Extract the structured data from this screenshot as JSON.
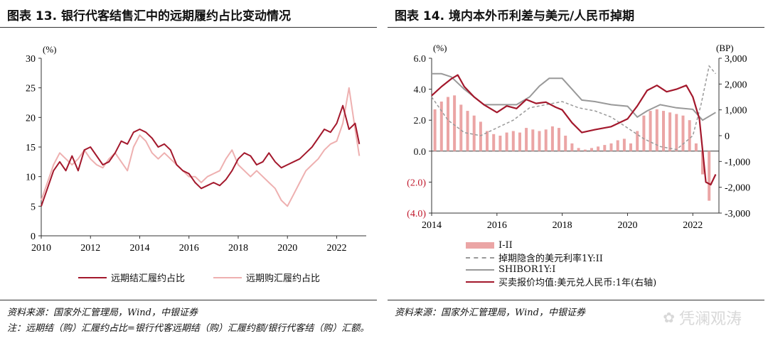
{
  "fig13": {
    "title": "图表 13. 银行代客结售汇中的远期履约占比变动情况",
    "source": "资料来源：国家外汇管理局，Wind，中银证券",
    "note": "注：远期结（购）汇履约占比=银行代客远期结（购）汇履约额/银行代客结（购）汇额。",
    "chart_data": {
      "type": "line",
      "ylabel": "(%)",
      "ylim": [
        0,
        30
      ],
      "yticks": [
        "0",
        "5",
        "10",
        "15",
        "20",
        "25",
        "30"
      ],
      "xlim": [
        2010,
        2023.2
      ],
      "xticks": [
        "2010",
        "2012",
        "2014",
        "2016",
        "2018",
        "2020",
        "2022"
      ],
      "legend_placement": "bottom",
      "series": [
        {
          "name": "远期结汇履约占比",
          "color": "#a3182c",
          "x": [
            2010.0,
            2010.25,
            2010.5,
            2010.75,
            2011.0,
            2011.25,
            2011.5,
            2011.75,
            2012.0,
            2012.25,
            2012.5,
            2012.75,
            2013.0,
            2013.25,
            2013.5,
            2013.75,
            2014.0,
            2014.25,
            2014.5,
            2014.75,
            2015.0,
            2015.25,
            2015.5,
            2015.75,
            2016.0,
            2016.25,
            2016.5,
            2016.75,
            2017.0,
            2017.25,
            2017.5,
            2017.75,
            2018.0,
            2018.25,
            2018.5,
            2018.75,
            2019.0,
            2019.25,
            2019.5,
            2019.75,
            2020.0,
            2020.25,
            2020.5,
            2020.75,
            2021.0,
            2021.25,
            2021.5,
            2021.75,
            2022.0,
            2022.25,
            2022.5,
            2022.75,
            2022.92
          ],
          "values": [
            5,
            8,
            11,
            12.5,
            11,
            13.5,
            11,
            14.5,
            15,
            13.5,
            12,
            12.5,
            14,
            16,
            15.5,
            17.5,
            18,
            17.5,
            16.5,
            15,
            15.5,
            14.5,
            12,
            11,
            10.5,
            9,
            8,
            8.5,
            9,
            8.5,
            9.5,
            11,
            13,
            14,
            13.5,
            12,
            12.5,
            14,
            12.5,
            11.5,
            12,
            12.5,
            13,
            14,
            15,
            16.5,
            18,
            17.5,
            19,
            22,
            18,
            19,
            15.5
          ]
        },
        {
          "name": "远期购汇履约占比",
          "color": "#eeb0b0",
          "x": [
            2010.0,
            2010.25,
            2010.5,
            2010.75,
            2011.0,
            2011.25,
            2011.5,
            2011.75,
            2012.0,
            2012.25,
            2012.5,
            2012.75,
            2013.0,
            2013.25,
            2013.5,
            2013.75,
            2014.0,
            2014.25,
            2014.5,
            2014.75,
            2015.0,
            2015.25,
            2015.5,
            2015.75,
            2016.0,
            2016.25,
            2016.5,
            2016.75,
            2017.0,
            2017.25,
            2017.5,
            2017.75,
            2018.0,
            2018.25,
            2018.5,
            2018.75,
            2019.0,
            2019.25,
            2019.5,
            2019.75,
            2020.0,
            2020.25,
            2020.5,
            2020.75,
            2021.0,
            2021.25,
            2021.5,
            2021.75,
            2022.0,
            2022.25,
            2022.5,
            2022.75,
            2022.92
          ],
          "values": [
            6,
            9,
            12,
            14,
            13,
            12,
            13,
            14.5,
            13,
            12,
            11.5,
            13,
            14,
            12.5,
            11,
            15,
            17,
            16,
            14,
            13,
            14,
            13,
            12,
            11,
            10,
            10,
            9,
            10,
            10.5,
            11,
            13,
            14.5,
            12,
            11,
            10,
            11,
            10,
            9,
            8,
            6,
            5,
            7,
            9,
            11,
            12,
            13,
            14.5,
            15.5,
            16,
            19,
            25,
            18,
            13.5
          ]
        }
      ]
    }
  },
  "fig14": {
    "title": "图表 14. 境内本外币利差与美元/人民币掉期",
    "source": "资料来源：国家外汇管理局，Wind，中银证券",
    "watermark": "凭澜观涛",
    "chart_data": {
      "type": "line",
      "ylabel": "(%)",
      "ylabel_right": "(BP)",
      "ylim": [
        -4,
        6
      ],
      "ylim_right": [
        -3000,
        3000
      ],
      "yticks": [
        "6.0",
        "4.0",
        "2.0",
        "0.0",
        "(2.0)",
        "(4.0)"
      ],
      "yticks_right": [
        "3,000",
        "2,000",
        "1,000",
        "0",
        "-1,000",
        "-2,000",
        "-3,000"
      ],
      "xlim": [
        2014,
        2022.8
      ],
      "xticks": [
        "2014",
        "2016",
        "2018",
        "2020",
        "2022"
      ],
      "legend_placement": "bottom",
      "series": [
        {
          "name": "I-II",
          "type": "bar",
          "color": "#eba5a5",
          "axis": "left",
          "x": [
            2014.1,
            2014.3,
            2014.5,
            2014.7,
            2014.9,
            2015.1,
            2015.3,
            2015.5,
            2015.7,
            2015.9,
            2016.1,
            2016.3,
            2016.5,
            2016.7,
            2016.9,
            2017.1,
            2017.3,
            2017.5,
            2017.7,
            2017.9,
            2018.1,
            2018.3,
            2018.5,
            2018.7,
            2018.9,
            2019.1,
            2019.3,
            2019.5,
            2019.7,
            2019.9,
            2020.1,
            2020.3,
            2020.5,
            2020.7,
            2020.9,
            2021.1,
            2021.3,
            2021.5,
            2021.7,
            2021.9,
            2022.1,
            2022.3,
            2022.5
          ],
          "values": [
            2.7,
            3.2,
            3.5,
            3.6,
            3.0,
            2.6,
            2.3,
            1.9,
            1.3,
            1.1,
            1.0,
            1.2,
            1.3,
            1.2,
            1.5,
            1.4,
            1.3,
            1.4,
            1.6,
            1.5,
            1.0,
            0.5,
            0.2,
            0.1,
            0.2,
            0.3,
            0.4,
            0.5,
            0.7,
            0.8,
            0.5,
            1.3,
            2.3,
            2.6,
            2.7,
            2.6,
            2.5,
            2.4,
            2.3,
            2.0,
            0.5,
            -1.5,
            -3.2
          ]
        },
        {
          "name": "掉期隐含的美元利率1Y:II",
          "type": "dashed",
          "color": "#999999",
          "axis": "left",
          "x": [
            2014.0,
            2014.5,
            2015.0,
            2015.5,
            2016.0,
            2016.5,
            2017.0,
            2017.5,
            2018.0,
            2018.5,
            2019.0,
            2019.5,
            2020.0,
            2020.5,
            2021.0,
            2021.5,
            2022.0,
            2022.25,
            2022.5,
            2022.7
          ],
          "values": [
            3.5,
            2.0,
            1.2,
            1.0,
            1.5,
            2.0,
            2.8,
            3.0,
            3.2,
            2.8,
            2.6,
            2.2,
            1.5,
            0.8,
            0.3,
            0.1,
            1.0,
            3.0,
            5.5,
            5.0
          ]
        },
        {
          "name": "SHIBOR1Y:I",
          "type": "line",
          "color": "#999999",
          "axis": "left",
          "x": [
            2014.0,
            2014.3,
            2014.6,
            2015.0,
            2015.3,
            2015.6,
            2016.0,
            2016.3,
            2016.6,
            2017.0,
            2017.3,
            2017.6,
            2018.0,
            2018.3,
            2018.6,
            2019.0,
            2019.5,
            2020.0,
            2020.3,
            2020.6,
            2021.0,
            2021.5,
            2022.0,
            2022.3,
            2022.7
          ],
          "values": [
            5.0,
            5.0,
            4.8,
            4.0,
            3.5,
            3.0,
            3.0,
            3.0,
            3.0,
            3.5,
            4.2,
            4.7,
            4.7,
            4.0,
            3.3,
            3.2,
            3.0,
            2.9,
            2.2,
            2.6,
            3.0,
            2.8,
            2.7,
            2.0,
            2.5
          ]
        },
        {
          "name": "买卖报价均值:美元兑人民币:1年(右轴)",
          "type": "line",
          "color": "#a3182c",
          "axis": "right",
          "x": [
            2014.0,
            2014.3,
            2014.6,
            2014.8,
            2015.0,
            2015.3,
            2015.6,
            2016.0,
            2016.3,
            2016.6,
            2016.9,
            2017.2,
            2017.5,
            2017.8,
            2018.0,
            2018.3,
            2018.6,
            2019.0,
            2019.5,
            2020.0,
            2020.3,
            2020.6,
            2020.9,
            2021.2,
            2021.5,
            2021.8,
            2022.0,
            2022.2,
            2022.4,
            2022.55,
            2022.7
          ],
          "values": [
            1550,
            1900,
            2200,
            2350,
            1900,
            1500,
            1200,
            900,
            1150,
            1050,
            1400,
            1250,
            1300,
            1100,
            1000,
            500,
            120,
            230,
            350,
            650,
            1150,
            1750,
            1950,
            1700,
            1800,
            1950,
            1500,
            650,
            -1800,
            -1900,
            -1500
          ]
        }
      ]
    }
  }
}
